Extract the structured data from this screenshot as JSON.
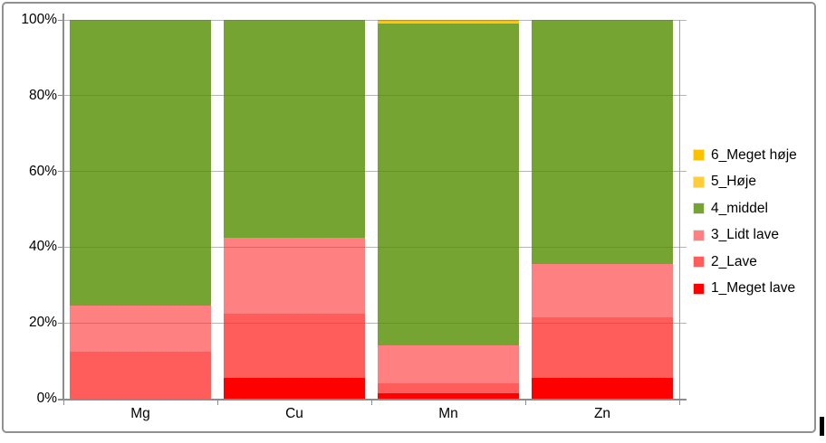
{
  "chart_data": {
    "type": "bar",
    "subtype": "stacked-100-percent",
    "categories": [
      "Mg",
      "Cu",
      "Mn",
      "Zn"
    ],
    "series": [
      {
        "name": "1_Meget lave",
        "color": "#FF0000",
        "values": [
          0,
          5.5,
          1.5,
          5.5
        ]
      },
      {
        "name": "2_Lave",
        "color": "#FF5C5C",
        "values": [
          12.5,
          17,
          2.5,
          16
        ]
      },
      {
        "name": "3_Lidt lave",
        "color": "#FF8080",
        "values": [
          12,
          20,
          10,
          14
        ]
      },
      {
        "name": "4_middel",
        "color": "#76A432",
        "values": [
          75.5,
          57.5,
          85,
          64.5
        ]
      },
      {
        "name": "5_Høje",
        "color": "#FFCD39",
        "values": [
          0,
          0,
          0.3,
          0
        ]
      },
      {
        "name": "6_Meget høje",
        "color": "#FFC000",
        "values": [
          0,
          0,
          0.7,
          0
        ]
      }
    ],
    "stack_order": "bottom-to-top",
    "title": "",
    "xlabel": "",
    "ylabel": "",
    "y_axis": {
      "min": 0,
      "max": 100,
      "tick_labels": [
        "0%",
        "20%",
        "40%",
        "60%",
        "80%",
        "100%"
      ],
      "grid": true
    },
    "legend": {
      "position": "right",
      "entries_top_to_bottom": [
        "6_Meget høje",
        "5_Høje",
        "4_middel",
        "3_Lidt lave",
        "2_Lave",
        "1_Meget lave"
      ]
    }
  },
  "colors": {
    "grid": "#A6A6A6",
    "axis": "#8C8C8C",
    "chart_border": "#919191",
    "text": "#000000",
    "background": "#FFFFFF"
  }
}
